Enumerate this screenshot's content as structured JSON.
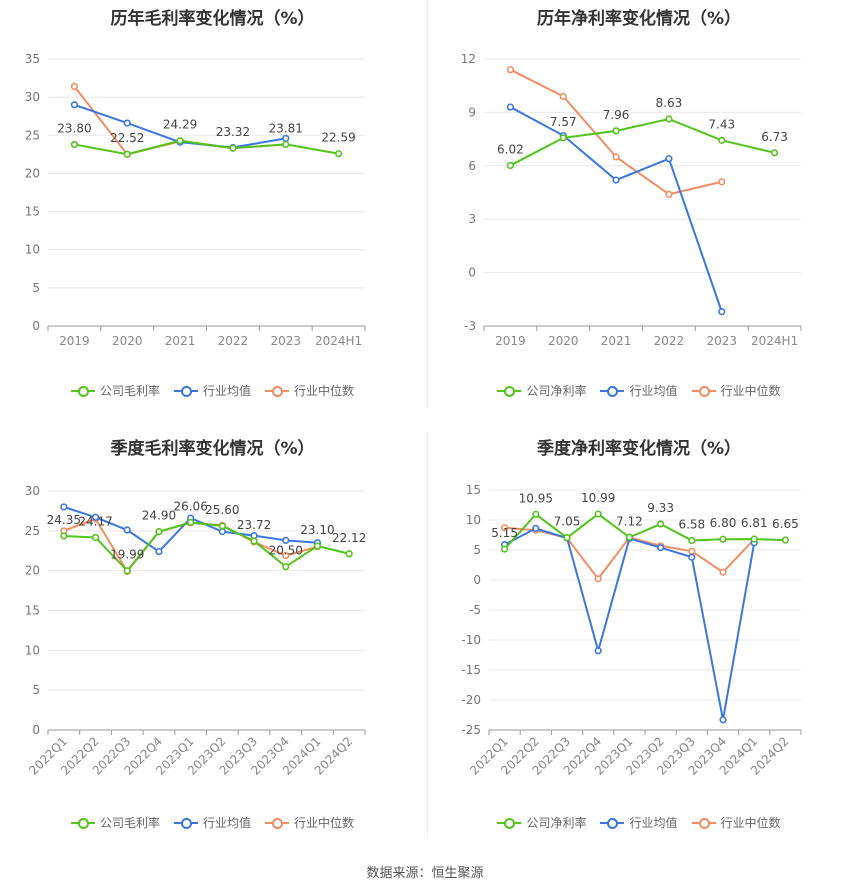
{
  "source_label": "数据来源：恒生聚源",
  "colors": {
    "company": "#52c41a",
    "industry_avg": "#3a77e0",
    "industry_median": "#f28c62"
  },
  "chart_data": [
    {
      "id": "annual-gross",
      "type": "line",
      "title": "历年毛利率变化情况（%）",
      "categories": [
        "2019",
        "2020",
        "2021",
        "2022",
        "2023",
        "2024H1"
      ],
      "ylim": [
        0,
        35
      ],
      "yticks": [
        0,
        5,
        10,
        15,
        20,
        25,
        30,
        35
      ],
      "grid": true,
      "legend_position": "bottom",
      "series": [
        {
          "name": "公司毛利率",
          "color": "#52c41a",
          "values": [
            23.8,
            22.52,
            24.29,
            23.32,
            23.81,
            22.59
          ],
          "labels": [
            "23.80",
            "22.52",
            "24.29",
            "23.32",
            "23.81",
            "22.59"
          ]
        },
        {
          "name": "行业均值",
          "color": "#3a77e0",
          "values": [
            29.0,
            26.6,
            24.1,
            23.4,
            24.6,
            null
          ]
        },
        {
          "name": "行业中位数",
          "color": "#f28c62",
          "values": [
            31.4,
            22.5,
            24.2,
            23.3,
            23.8,
            null
          ]
        }
      ]
    },
    {
      "id": "annual-net",
      "type": "line",
      "title": "历年净利率变化情况（%）",
      "categories": [
        "2019",
        "2020",
        "2021",
        "2022",
        "2023",
        "2024H1"
      ],
      "ylim": [
        -3,
        12
      ],
      "yticks": [
        -3,
        0,
        3,
        6,
        9,
        12
      ],
      "grid": true,
      "legend_position": "bottom",
      "series": [
        {
          "name": "公司净利率",
          "color": "#52c41a",
          "values": [
            6.02,
            7.57,
            7.96,
            8.63,
            7.43,
            6.73
          ],
          "labels": [
            "6.02",
            "7.57",
            "7.96",
            "8.63",
            "7.43",
            "6.73"
          ]
        },
        {
          "name": "行业均值",
          "color": "#3a77e0",
          "values": [
            9.3,
            7.7,
            5.2,
            6.4,
            -2.2,
            null
          ]
        },
        {
          "name": "行业中位数",
          "color": "#f28c62",
          "values": [
            11.4,
            9.9,
            6.5,
            4.4,
            5.1,
            null
          ]
        }
      ]
    },
    {
      "id": "quarterly-gross",
      "type": "line",
      "title": "季度毛利率变化情况（%）",
      "categories": [
        "2022Q1",
        "2022Q2",
        "2022Q3",
        "2022Q4",
        "2023Q1",
        "2023Q2",
        "2023Q3",
        "2023Q4",
        "2024Q1",
        "2024Q2"
      ],
      "ylim": [
        0,
        30
      ],
      "yticks": [
        0,
        5,
        10,
        15,
        20,
        25,
        30
      ],
      "grid": true,
      "legend_position": "bottom",
      "series": [
        {
          "name": "公司毛利率",
          "color": "#52c41a",
          "values": [
            24.35,
            24.17,
            19.99,
            24.9,
            26.06,
            25.6,
            23.72,
            20.5,
            23.1,
            22.12
          ],
          "labels": [
            "24.35",
            "24.17",
            "19.99",
            "24.90",
            "26.06",
            "25.60",
            "23.72",
            "20.50",
            "23.10",
            "22.12"
          ]
        },
        {
          "name": "行业均值",
          "color": "#3a77e0",
          "values": [
            28.0,
            26.7,
            25.1,
            22.4,
            26.6,
            24.9,
            24.4,
            23.8,
            23.5,
            null
          ]
        },
        {
          "name": "行业中位数",
          "color": "#f28c62",
          "values": [
            25.0,
            26.5,
            19.9,
            24.9,
            26.0,
            25.7,
            23.6,
            21.9,
            23.0,
            null
          ]
        }
      ]
    },
    {
      "id": "quarterly-net",
      "type": "line",
      "title": "季度净利率变化情况（%）",
      "categories": [
        "2022Q1",
        "2022Q2",
        "2022Q3",
        "2022Q4",
        "2023Q1",
        "2023Q2",
        "2023Q3",
        "2023Q4",
        "2024Q1",
        "2024Q2"
      ],
      "ylim": [
        -25,
        15
      ],
      "yticks": [
        -25,
        -20,
        -15,
        -10,
        -5,
        0,
        5,
        10,
        15
      ],
      "grid": true,
      "legend_position": "bottom",
      "series": [
        {
          "name": "公司净利率",
          "color": "#52c41a",
          "values": [
            5.15,
            10.95,
            7.05,
            10.99,
            7.12,
            9.33,
            6.58,
            6.8,
            6.81,
            6.65
          ],
          "labels": [
            "5.15",
            "10.95",
            "7.05",
            "10.99",
            "7.12",
            "9.33",
            "6.58",
            "6.80",
            "6.81",
            "6.65"
          ]
        },
        {
          "name": "行业均值",
          "color": "#3a77e0",
          "values": [
            5.9,
            8.6,
            7.0,
            -11.8,
            6.9,
            5.4,
            3.8,
            -23.3,
            6.2,
            null
          ]
        },
        {
          "name": "行业中位数",
          "color": "#f28c62",
          "values": [
            8.7,
            8.3,
            7.0,
            0.2,
            7.1,
            5.7,
            4.8,
            1.3,
            6.8,
            null
          ]
        }
      ]
    }
  ]
}
